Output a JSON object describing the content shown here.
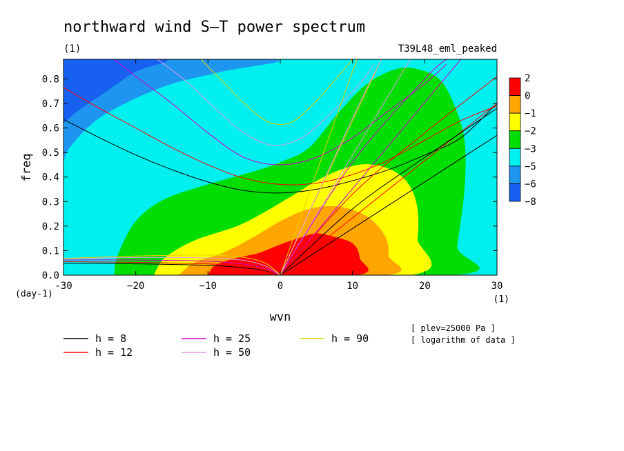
{
  "chart_data": {
    "type": "heatmap",
    "title": "northward wind S–T power spectrum",
    "subtitle_left": "(1)",
    "subtitle_right": "T39L48_eml_peaked",
    "xlabel": "wvn",
    "ylabel": "freq",
    "x_unit": "(1)",
    "y_unit": "(day-1)",
    "xlim": [
      -30,
      30
    ],
    "ylim": [
      0,
      0.88
    ],
    "x_ticks": [
      -30,
      -20,
      -10,
      0,
      10,
      20,
      30
    ],
    "x_tick_labels": [
      "-30",
      "−20",
      "−10",
      "0",
      "10",
      "20",
      "30"
    ],
    "y_ticks": [
      0.0,
      0.1,
      0.2,
      0.3,
      0.4,
      0.5,
      0.6,
      0.7,
      0.8
    ],
    "y_tick_labels": [
      "0.0",
      "0.1",
      "0.2",
      "0.3",
      "0.4",
      "0.5",
      "0.6",
      "0.7",
      "0.8"
    ],
    "colorbar": {
      "levels": [
        -8,
        -6,
        -5,
        -3,
        -2,
        -1,
        0,
        2
      ],
      "labels": [
        "2",
        "0",
        "−1",
        "−2",
        "−3",
        "−5",
        "−6",
        "−8"
      ],
      "colors": [
        "#1760f0",
        "#1e96f0",
        "#00f0f0",
        "#00dd00",
        "#ffff00",
        "#ffa500",
        "#ff0000"
      ]
    },
    "regions": [
      {
        "level": -6,
        "color": "#1e96f0",
        "points": [
          [
            -30,
            0.27
          ],
          [
            -30,
            0.88
          ],
          [
            -1,
            0.88
          ],
          [
            -8,
            0.83
          ],
          [
            -16,
            0.77
          ],
          [
            -24,
            0.66
          ],
          [
            -28,
            0.56
          ],
          [
            -30,
            0.46
          ],
          [
            -30,
            0.27
          ]
        ]
      },
      {
        "level": -8,
        "color": "#1760f0",
        "points": [
          [
            -30,
            0.55
          ],
          [
            -30,
            0.88
          ],
          [
            -16,
            0.88
          ],
          [
            -20,
            0.83
          ],
          [
            -24,
            0.75
          ],
          [
            -28,
            0.67
          ],
          [
            -30,
            0.62
          ]
        ]
      },
      {
        "level": -3,
        "color": "#00dd00",
        "points": [
          [
            -23,
            0
          ],
          [
            -22.5,
            0.08
          ],
          [
            -20,
            0.22
          ],
          [
            -16,
            0.31
          ],
          [
            -10,
            0.37
          ],
          [
            -4,
            0.42
          ],
          [
            0,
            0.46
          ],
          [
            4,
            0.52
          ],
          [
            8,
            0.66
          ],
          [
            12,
            0.78
          ],
          [
            16,
            0.84
          ],
          [
            19,
            0.84
          ],
          [
            22,
            0.8
          ],
          [
            24,
            0.7
          ],
          [
            25.5,
            0.55
          ],
          [
            25.5,
            0.35
          ],
          [
            24.5,
            0.12
          ],
          [
            24,
            0
          ],
          [
            -23,
            0
          ]
        ]
      },
      {
        "level": -2,
        "color": "#ffff00",
        "points": [
          [
            -17.5,
            0
          ],
          [
            -16,
            0.07
          ],
          [
            -12,
            0.14
          ],
          [
            -6,
            0.2
          ],
          [
            -2,
            0.26
          ],
          [
            2,
            0.33
          ],
          [
            6,
            0.4
          ],
          [
            10,
            0.445
          ],
          [
            13,
            0.45
          ],
          [
            16,
            0.42
          ],
          [
            18,
            0.36
          ],
          [
            19,
            0.27
          ],
          [
            19,
            0.15
          ],
          [
            18,
            0
          ],
          [
            -17.5,
            0
          ]
        ]
      },
      {
        "level": -1,
        "color": "#ffa500",
        "points": [
          [
            -14,
            0
          ],
          [
            -12,
            0.05
          ],
          [
            -8,
            0.09
          ],
          [
            -4,
            0.15
          ],
          [
            0,
            0.22
          ],
          [
            4,
            0.27
          ],
          [
            8,
            0.28
          ],
          [
            12,
            0.24
          ],
          [
            14.5,
            0.16
          ],
          [
            15,
            0.08
          ],
          [
            14.5,
            0
          ],
          [
            -14,
            0
          ]
        ]
      },
      {
        "level": 0,
        "color": "#ff0000",
        "points": [
          [
            -10,
            0
          ],
          [
            -9,
            0.04
          ],
          [
            -6,
            0.07
          ],
          [
            -3,
            0.09
          ],
          [
            0,
            0.125
          ],
          [
            3,
            0.155
          ],
          [
            5,
            0.17
          ],
          [
            7,
            0.16
          ],
          [
            10,
            0.13
          ],
          [
            11,
            0.07
          ],
          [
            10.5,
            0
          ],
          [
            -10,
            0
          ]
        ]
      }
    ],
    "curves": [
      {
        "h": 8,
        "color": "#000000",
        "type": "mrg_h",
        "points": [
          [
            -30,
            0.635
          ],
          [
            -25,
            0.56
          ],
          [
            -20,
            0.49
          ],
          [
            -15,
            0.43
          ],
          [
            -10,
            0.38
          ],
          [
            -5,
            0.345
          ],
          [
            0,
            0.335
          ],
          [
            5,
            0.35
          ],
          [
            10,
            0.385
          ],
          [
            15,
            0.43
          ],
          [
            20,
            0.49
          ],
          [
            25,
            0.56
          ],
          [
            30,
            0.7
          ]
        ]
      },
      {
        "h": 12,
        "color": "#ff0000",
        "type": "mrg_h",
        "points": [
          [
            -30,
            0.765
          ],
          [
            -25,
            0.68
          ],
          [
            -20,
            0.6
          ],
          [
            -15,
            0.52
          ],
          [
            -10,
            0.45
          ],
          [
            -5,
            0.395
          ],
          [
            0,
            0.37
          ],
          [
            5,
            0.375
          ],
          [
            10,
            0.41
          ],
          [
            15,
            0.47
          ],
          [
            20,
            0.55
          ],
          [
            25,
            0.63
          ],
          [
            30,
            0.69
          ]
        ]
      },
      {
        "h": 25,
        "color": "#cc00cc",
        "type": "mrg_h",
        "points": [
          [
            -23,
            0.88
          ],
          [
            -20,
            0.81
          ],
          [
            -15,
            0.7
          ],
          [
            -10,
            0.58
          ],
          [
            -5,
            0.48
          ],
          [
            0,
            0.45
          ],
          [
            5,
            0.48
          ],
          [
            10,
            0.56
          ],
          [
            15,
            0.67
          ],
          [
            20,
            0.78
          ],
          [
            23,
            0.86
          ]
        ]
      },
      {
        "h": 50,
        "color": "#e49ae4",
        "type": "mrg_h",
        "points": [
          [
            -17,
            0.88
          ],
          [
            -13,
            0.79
          ],
          [
            -9,
            0.68
          ],
          [
            -5,
            0.58
          ],
          [
            -1,
            0.53
          ],
          [
            3,
            0.56
          ],
          [
            7,
            0.66
          ],
          [
            11,
            0.78
          ],
          [
            13,
            0.86
          ]
        ]
      },
      {
        "h": 90,
        "color": "#e8d000",
        "type": "mrg_h",
        "points": [
          [
            -11,
            0.88
          ],
          [
            -8,
            0.79
          ],
          [
            -5,
            0.7
          ],
          [
            -2,
            0.63
          ],
          [
            0,
            0.615
          ],
          [
            2,
            0.63
          ],
          [
            5,
            0.71
          ],
          [
            8,
            0.81
          ],
          [
            10,
            0.88
          ]
        ]
      },
      {
        "h": 8,
        "color": "#000000",
        "type": "kelvin",
        "points": [
          [
            0,
            0
          ],
          [
            30,
            0.57
          ]
        ]
      },
      {
        "h": 12,
        "color": "#ff0000",
        "type": "kelvin",
        "points": [
          [
            0,
            0
          ],
          [
            30,
            0.7
          ]
        ]
      },
      {
        "h": 25,
        "color": "#cc00cc",
        "type": "kelvin",
        "points": [
          [
            0,
            0
          ],
          [
            25,
            0.88
          ]
        ]
      },
      {
        "h": 50,
        "color": "#e49ae4",
        "type": "kelvin",
        "points": [
          [
            0,
            0
          ],
          [
            18,
            0.88
          ]
        ]
      },
      {
        "h": 90,
        "color": "#e8d000",
        "type": "kelvin",
        "points": [
          [
            0,
            0
          ],
          [
            14,
            0.88
          ]
        ]
      },
      {
        "h": 8,
        "color": "#000000",
        "type": "ig1",
        "points": [
          [
            0,
            0
          ],
          [
            10,
            0.27
          ],
          [
            20,
            0.48
          ],
          [
            30,
            0.68
          ]
        ]
      },
      {
        "h": 12,
        "color": "#ff0000",
        "type": "ig1",
        "points": [
          [
            0,
            0
          ],
          [
            10,
            0.33
          ],
          [
            20,
            0.58
          ],
          [
            30,
            0.81
          ]
        ]
      },
      {
        "h": 25,
        "color": "#cc00cc",
        "type": "ig1",
        "points": [
          [
            0,
            0
          ],
          [
            10,
            0.46
          ],
          [
            20,
            0.8
          ],
          [
            23,
            0.88
          ]
        ]
      },
      {
        "h": 50,
        "color": "#e49ae4",
        "type": "ig1",
        "points": [
          [
            0,
            0
          ],
          [
            10,
            0.64
          ],
          [
            14,
            0.88
          ]
        ]
      },
      {
        "h": 90,
        "color": "#e8d000",
        "type": "ig1",
        "points": [
          [
            0,
            0
          ],
          [
            10,
            0.83
          ],
          [
            11,
            0.88
          ]
        ]
      },
      {
        "h": 8,
        "color": "#000000",
        "type": "rossby",
        "points": [
          [
            -30,
            0.049
          ],
          [
            -20,
            0.046
          ],
          [
            -10,
            0.04
          ],
          [
            -5,
            0.03
          ],
          [
            -2,
            0.018
          ],
          [
            0,
            0
          ]
        ]
      },
      {
        "h": 12,
        "color": "#ff0000",
        "type": "rossby",
        "points": [
          [
            -30,
            0.055
          ],
          [
            -20,
            0.052
          ],
          [
            -10,
            0.046
          ],
          [
            -5,
            0.035
          ],
          [
            -2,
            0.02
          ],
          [
            0,
            0
          ]
        ]
      },
      {
        "h": 25,
        "color": "#cc00cc",
        "type": "rossby",
        "points": [
          [
            -30,
            0.062
          ],
          [
            -20,
            0.062
          ],
          [
            -10,
            0.057
          ],
          [
            -5,
            0.045
          ],
          [
            -2,
            0.027
          ],
          [
            0,
            0
          ]
        ]
      },
      {
        "h": 50,
        "color": "#e49ae4",
        "type": "rossby",
        "points": [
          [
            -30,
            0.066
          ],
          [
            -20,
            0.072
          ],
          [
            -10,
            0.07
          ],
          [
            -5,
            0.06
          ],
          [
            -2,
            0.037
          ],
          [
            0,
            0
          ]
        ]
      },
      {
        "h": 90,
        "color": "#e8d000",
        "type": "rossby",
        "points": [
          [
            -30,
            0.068
          ],
          [
            -20,
            0.078
          ],
          [
            -10,
            0.082
          ],
          [
            -5,
            0.072
          ],
          [
            -2,
            0.048
          ],
          [
            0,
            0
          ]
        ]
      }
    ],
    "legend": [
      {
        "label": "h =  8",
        "color": "#000000"
      },
      {
        "label": "h = 12",
        "color": "#ff0000"
      },
      {
        "label": "h = 25",
        "color": "#cc00cc"
      },
      {
        "label": "h = 50",
        "color": "#e49ae4"
      },
      {
        "label": "h = 90",
        "color": "#e8d000"
      }
    ],
    "notes": [
      "[ plev=25000 Pa ]",
      "[ logarithm of data ]"
    ],
    "background_color": "#00f0f0"
  }
}
